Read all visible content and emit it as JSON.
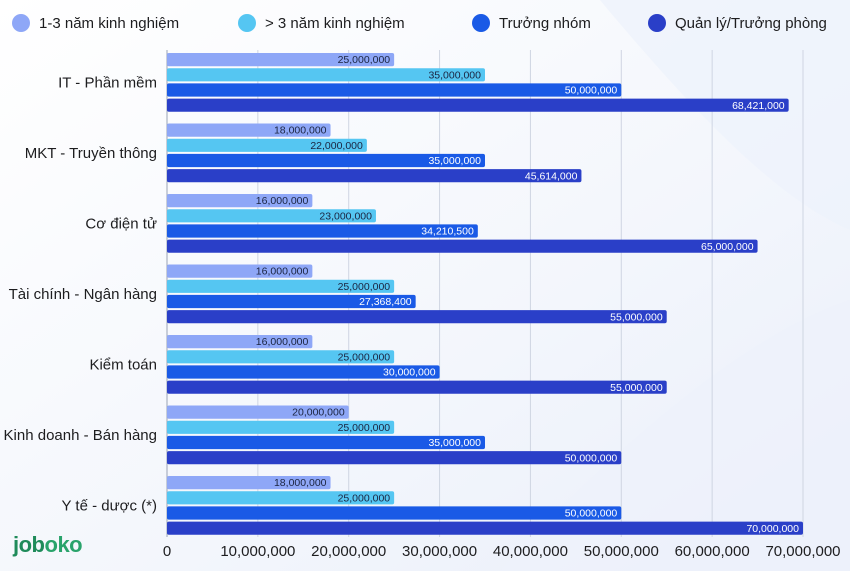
{
  "chart_data": {
    "type": "bar",
    "orientation": "horizontal",
    "categories": [
      "IT - Phần mềm",
      "MKT - Truyền thông",
      "Cơ điện tử",
      "Tài chính - Ngân hàng",
      "Kiểm toán",
      "Kinh doanh - Bán hàng",
      "Y tế - dược (*)"
    ],
    "series": [
      {
        "name": "1-3 năm kinh nghiệm",
        "color": "#8ea7f7",
        "values": [
          25000000,
          18000000,
          16000000,
          16000000,
          16000000,
          20000000,
          18000000
        ],
        "labels": [
          "25,000,000",
          "18,000,000",
          "16,000,000",
          "16,000,000",
          "16,000,000",
          "20,000,000",
          "18,000,000"
        ]
      },
      {
        "name": "> 3 năm kinh nghiệm",
        "color": "#55c6f2",
        "values": [
          35000000,
          22000000,
          23000000,
          25000000,
          25000000,
          25000000,
          25000000
        ],
        "labels": [
          "35,000,000",
          "22,000,000",
          "23,000,000",
          "25,000,000",
          "25,000,000",
          "25,000,000",
          "25,000,000"
        ]
      },
      {
        "name": "Trưởng nhóm",
        "color": "#1a5ae6",
        "values": [
          50000000,
          35000000,
          34210500,
          27368400,
          30000000,
          35000000,
          50000000
        ],
        "labels": [
          "50,000,000",
          "35,000,000",
          "34,210,500",
          "27,368,400",
          "30,000,000",
          "35,000,000",
          "50,000,000"
        ]
      },
      {
        "name": "Quản lý/Trưởng phòng",
        "color": "#2a3fc8",
        "values": [
          68421000,
          45614000,
          65000000,
          55000000,
          55000000,
          50000000,
          70000000
        ],
        "labels": [
          "68,421,000",
          "45,614,000",
          "65,000,000",
          "55,000,000",
          "55,000,000",
          "50,000,000",
          "70,000,000"
        ]
      }
    ],
    "xlim": [
      0,
      70000000
    ],
    "xticks": [
      0,
      10000000,
      20000000,
      30000000,
      40000000,
      50000000,
      60000000,
      70000000
    ],
    "xtick_labels": [
      "0",
      "10,000,000",
      "20,000,000",
      "30,000,000",
      "40,000,000",
      "50,000,000",
      "60,000,000",
      "70,000,000"
    ],
    "legend_position": "top",
    "grid": true
  },
  "logo": {
    "j": "job",
    "oo": "oko"
  }
}
